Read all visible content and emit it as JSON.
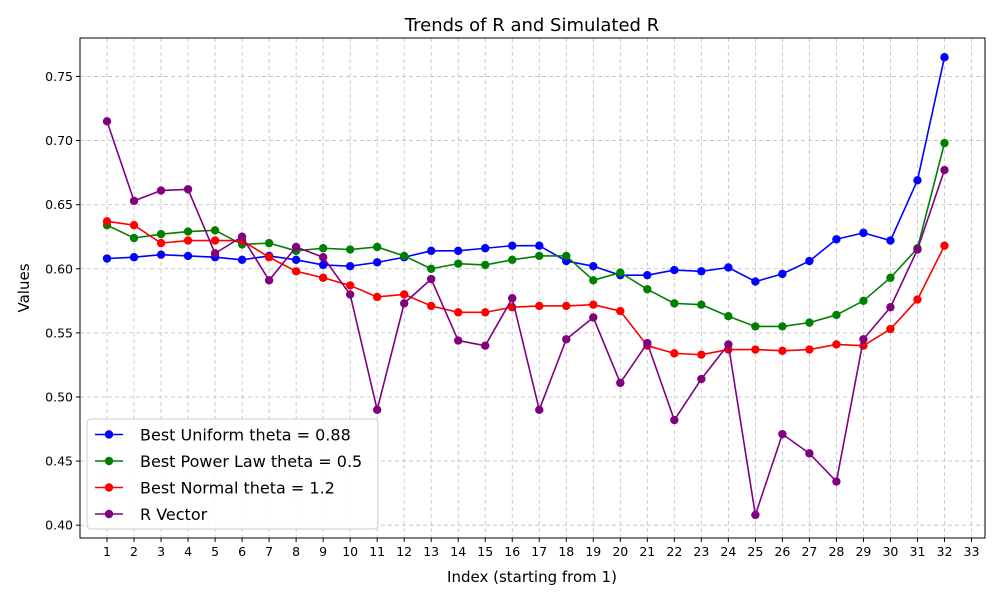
{
  "chart_data": {
    "type": "line",
    "title": "Trends of R and Simulated R",
    "xlabel": "Index (starting from 1)",
    "ylabel": "Values",
    "xlim": [
      0,
      33.5
    ],
    "ylim": [
      0.39,
      0.78
    ],
    "xticks": [
      1,
      2,
      3,
      4,
      5,
      6,
      7,
      8,
      9,
      10,
      11,
      12,
      13,
      14,
      15,
      16,
      17,
      18,
      19,
      20,
      21,
      22,
      23,
      24,
      25,
      26,
      27,
      28,
      29,
      30,
      31,
      32,
      33
    ],
    "yticks": [
      0.4,
      0.45,
      0.5,
      0.55,
      0.6,
      0.65,
      0.7,
      0.75
    ],
    "ytick_labels": [
      "0.40",
      "0.45",
      "0.50",
      "0.55",
      "0.60",
      "0.65",
      "0.70",
      "0.75"
    ],
    "grid": true,
    "legend_position": "bottom-left",
    "x": [
      1,
      2,
      3,
      4,
      5,
      6,
      7,
      8,
      9,
      10,
      11,
      12,
      13,
      14,
      15,
      16,
      17,
      18,
      19,
      20,
      21,
      22,
      23,
      24,
      25,
      26,
      27,
      28,
      29,
      30,
      31,
      32
    ],
    "series": [
      {
        "name": "Best Uniform theta = 0.88",
        "color": "#0000ff",
        "values": [
          0.608,
          0.609,
          0.611,
          0.61,
          0.609,
          0.607,
          0.61,
          0.607,
          0.603,
          0.602,
          0.605,
          0.609,
          0.614,
          0.614,
          0.616,
          0.618,
          0.618,
          0.606,
          0.602,
          0.595,
          0.595,
          0.599,
          0.598,
          0.601,
          0.59,
          0.596,
          0.606,
          0.623,
          0.628,
          0.622,
          0.669,
          0.765
        ]
      },
      {
        "name": "Best Power Law theta = 0.5",
        "color": "#008000",
        "values": [
          0.634,
          0.624,
          0.627,
          0.629,
          0.63,
          0.619,
          0.62,
          0.614,
          0.616,
          0.615,
          0.617,
          0.61,
          0.6,
          0.604,
          0.603,
          0.607,
          0.61,
          0.61,
          0.591,
          0.597,
          0.584,
          0.573,
          0.572,
          0.563,
          0.555,
          0.555,
          0.558,
          0.564,
          0.575,
          0.593,
          0.616,
          0.698
        ]
      },
      {
        "name": "Best Normal theta = 1.2",
        "color": "#ff0000",
        "values": [
          0.637,
          0.634,
          0.62,
          0.622,
          0.622,
          0.622,
          0.609,
          0.598,
          0.593,
          0.587,
          0.578,
          0.58,
          0.571,
          0.566,
          0.566,
          0.57,
          0.571,
          0.571,
          0.572,
          0.567,
          0.54,
          0.534,
          0.533,
          0.537,
          0.537,
          0.536,
          0.537,
          0.541,
          0.54,
          0.553,
          0.576,
          0.618
        ]
      },
      {
        "name": "R Vector",
        "color": "#800080",
        "values": [
          0.715,
          0.653,
          0.661,
          0.662,
          0.612,
          0.625,
          0.591,
          0.617,
          0.609,
          0.58,
          0.49,
          0.573,
          0.592,
          0.544,
          0.54,
          0.577,
          0.49,
          0.545,
          0.562,
          0.511,
          0.542,
          0.482,
          0.514,
          0.541,
          0.408,
          0.471,
          0.456,
          0.434,
          0.545,
          0.57,
          0.615,
          0.677
        ]
      }
    ]
  }
}
